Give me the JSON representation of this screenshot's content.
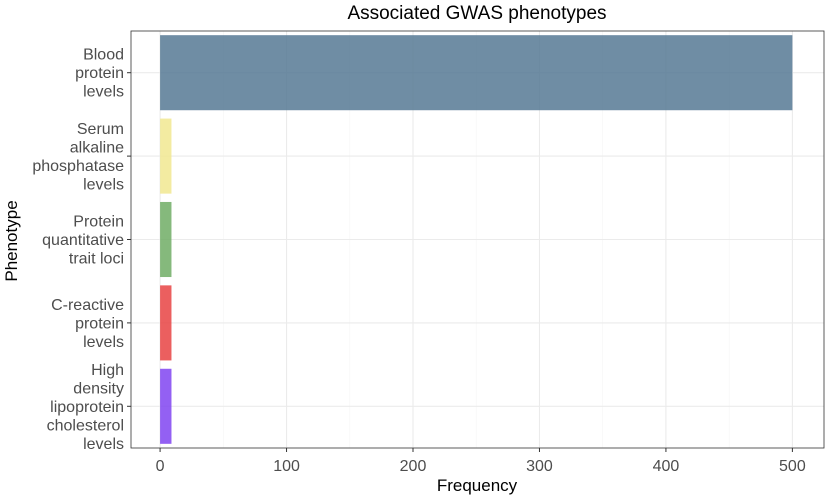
{
  "chart_data": {
    "type": "bar",
    "orientation": "horizontal",
    "title": "Associated GWAS phenotypes",
    "xlabel": "Frequency",
    "ylabel": "Phenotype",
    "xlim": [
      -23,
      525
    ],
    "xticks": [
      0,
      100,
      200,
      300,
      400,
      500
    ],
    "grid": true,
    "legend": "none",
    "categories": [
      "Blood protein levels",
      "Serum alkaline phosphatase levels",
      "Protein quantitative trait loci",
      "C-reactive protein levels",
      "High density lipoprotein cholesterol levels"
    ],
    "category_label_lines": [
      [
        "Blood",
        "protein",
        "levels"
      ],
      [
        "Serum",
        "alkaline",
        "phosphatase",
        "levels"
      ],
      [
        "Protein",
        "quantitative",
        "trait loci"
      ],
      [
        "C-reactive",
        "protein",
        "levels"
      ],
      [
        "High",
        "density",
        "lipoprotein",
        "cholesterol",
        "levels"
      ]
    ],
    "values": [
      500,
      9,
      9,
      9,
      9
    ],
    "colors": [
      "#4f7490",
      "#f0e68c",
      "#6aaa5f",
      "#e63c3c",
      "#7b3df0"
    ],
    "bar_opacity": 0.82
  }
}
